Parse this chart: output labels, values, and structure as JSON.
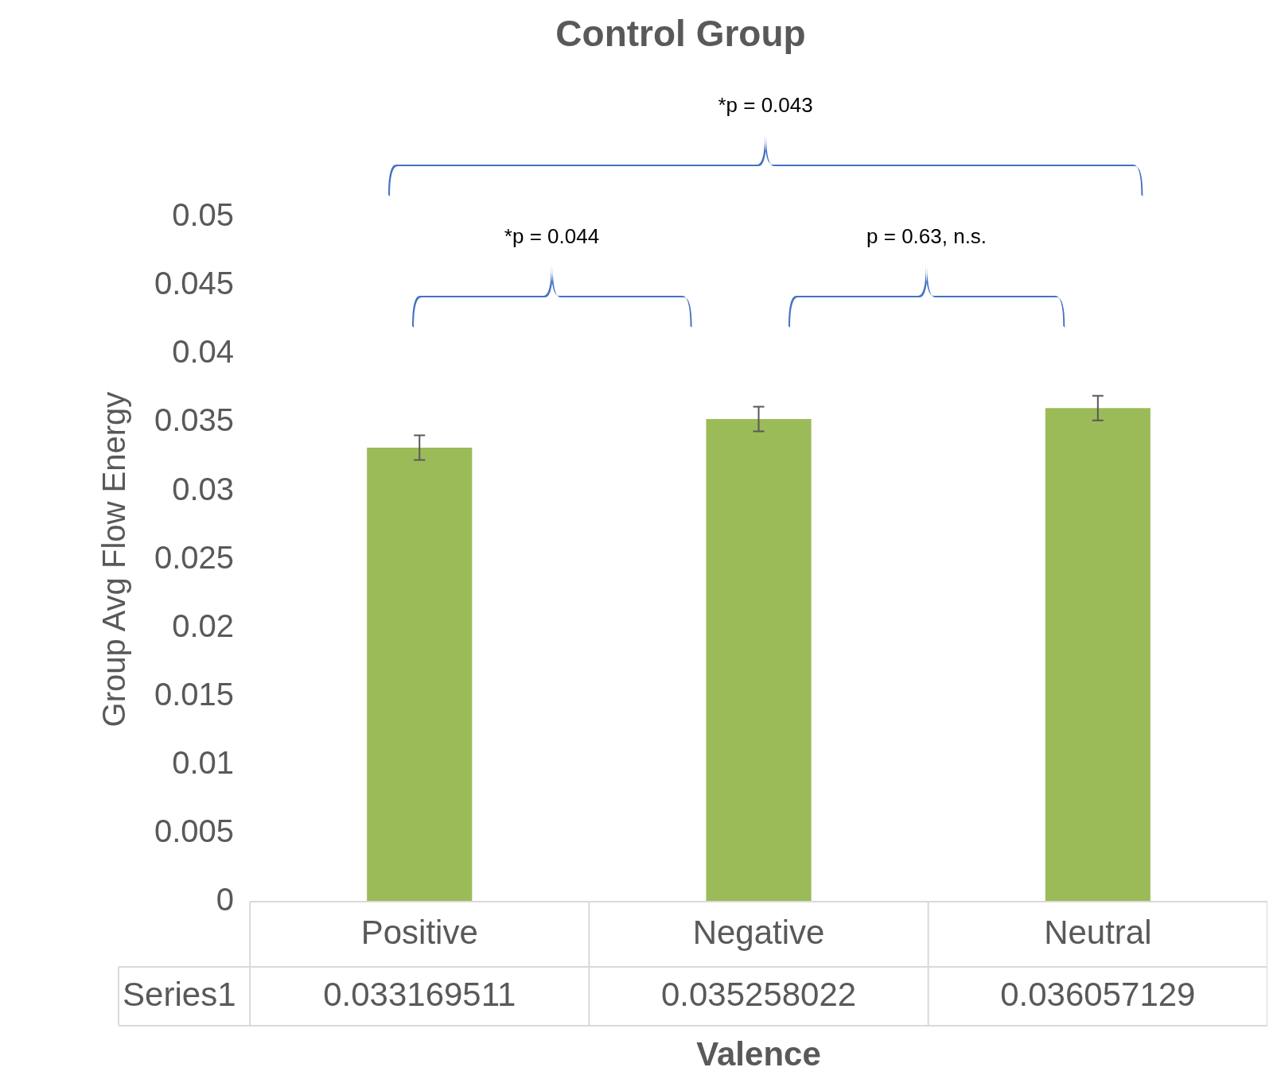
{
  "chart_data": {
    "type": "bar",
    "title": "Control Group",
    "xlabel": "Valence",
    "ylabel": "Group Avg Flow Energy",
    "categories": [
      "Positive",
      "Negative",
      "Neutral"
    ],
    "series": [
      {
        "name": "Series1",
        "color": "#9bbb59",
        "values": [
          0.033169511,
          0.035258022,
          0.036057129
        ],
        "errors": [
          0.0009,
          0.0009,
          0.0009
        ]
      }
    ],
    "ylim": [
      0,
      0.05
    ],
    "yticks": [
      0,
      0.005,
      0.01,
      0.015,
      0.02,
      0.025,
      0.03,
      0.035,
      0.04,
      0.045,
      0.05
    ],
    "grid": false,
    "data_labels": true,
    "annotations": [
      "*p = 0.043",
      "*p = 0.044",
      "p = 0.63, n.s."
    ]
  }
}
